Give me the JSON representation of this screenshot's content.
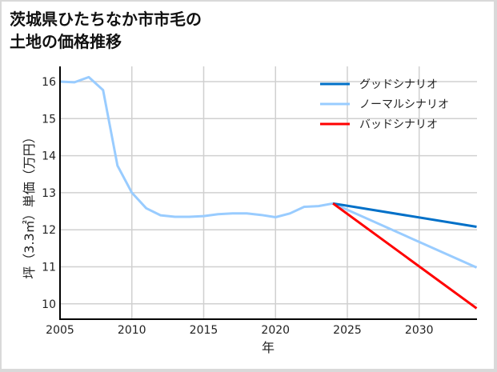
{
  "title_line1": "茨城県ひたちなか市市毛の",
  "title_line2": "土地の価格推移",
  "chart_data": {
    "type": "line",
    "title": "茨城県ひたちなか市市毛の土地の価格推移",
    "xlabel": "年",
    "ylabel": "坪（3.3㎡）単価（万円）",
    "xlim": [
      2005,
      2034
    ],
    "ylim": [
      9.6,
      16.5
    ],
    "x_ticks": [
      2005,
      2010,
      2015,
      2020,
      2025,
      2030
    ],
    "y_ticks": [
      10,
      11,
      12,
      13,
      14,
      15,
      16
    ],
    "grid": true,
    "legend_position": "upper right",
    "series": [
      {
        "name": "グッドシナリオ",
        "color": "#0070c8",
        "x": [
          2024,
          2034
        ],
        "values": [
          12.71,
          12.08
        ]
      },
      {
        "name": "ノーマルシナリオ",
        "color": "#99ccff",
        "x": [
          2005,
          2006,
          2007,
          2008,
          2009,
          2010,
          2011,
          2012,
          2013,
          2014,
          2015,
          2016,
          2017,
          2018,
          2019,
          2020,
          2021,
          2022,
          2023,
          2024,
          2034
        ],
        "values": [
          16.0,
          15.98,
          16.12,
          15.77,
          13.73,
          13.0,
          12.58,
          12.39,
          12.35,
          12.35,
          12.37,
          12.42,
          12.44,
          12.44,
          12.4,
          12.34,
          12.44,
          12.62,
          12.64,
          12.71,
          10.98
        ]
      },
      {
        "name": "バッドシナリオ",
        "color": "#ff0000",
        "x": [
          2024,
          2034
        ],
        "values": [
          12.71,
          9.88
        ]
      }
    ]
  }
}
